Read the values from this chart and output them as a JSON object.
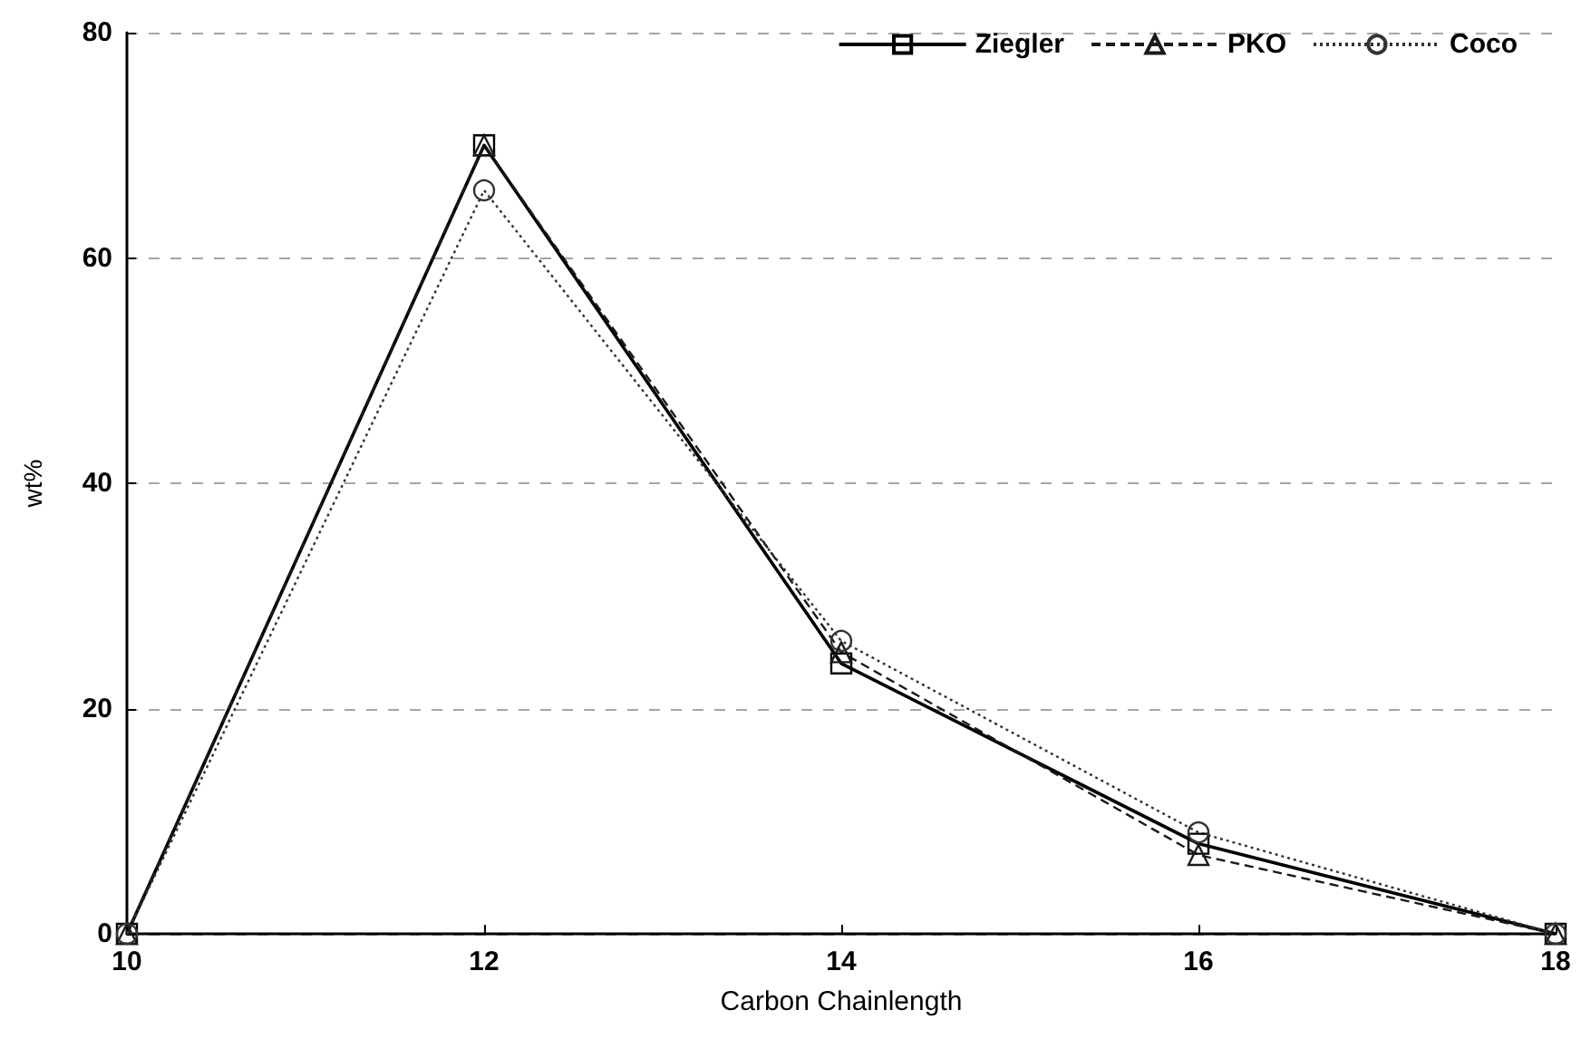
{
  "chart_data": {
    "type": "line",
    "xlabel": "Carbon Chainlength",
    "ylabel": "wt%",
    "x": [
      10,
      12,
      14,
      16,
      18
    ],
    "series": [
      {
        "name": "Ziegler",
        "color": "#000000",
        "marker": "square",
        "line_style": "solid",
        "values": [
          0,
          70,
          24,
          8,
          0
        ]
      },
      {
        "name": "PKO",
        "color": "#1a1a1a",
        "marker": "triangle",
        "line_style": "dashed",
        "values": [
          0,
          70,
          25,
          7,
          0
        ]
      },
      {
        "name": "Coco",
        "color": "#333333",
        "marker": "circle",
        "line_style": "dotted",
        "values": [
          0,
          66,
          26,
          9,
          0
        ]
      }
    ],
    "xlim": [
      10,
      18
    ],
    "xticks": [
      10,
      12,
      14,
      16,
      18
    ],
    "ylim": [
      0,
      80
    ],
    "yticks": [
      0,
      20,
      40,
      60,
      80
    ],
    "grid": "y",
    "legend": "top right"
  }
}
